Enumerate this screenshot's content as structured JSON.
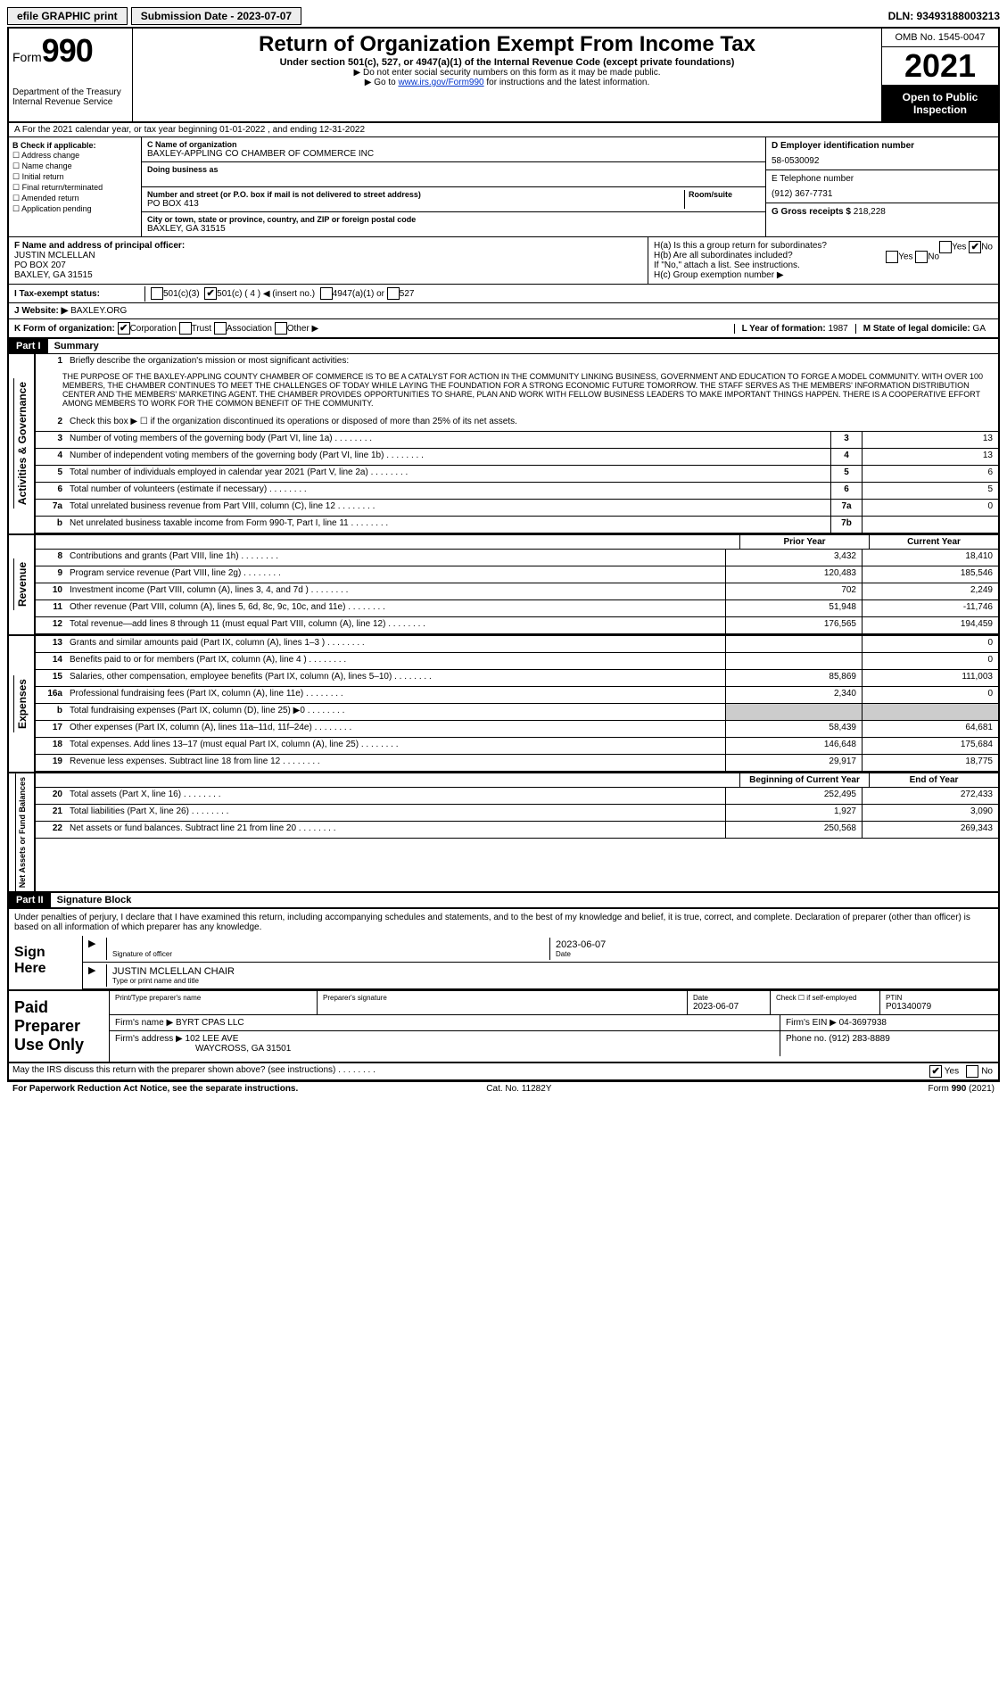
{
  "topbar": {
    "efile": "efile GRAPHIC print",
    "submission_label": "Submission Date - 2023-07-07",
    "dln": "DLN: 93493188003213"
  },
  "header": {
    "form_small": "Form",
    "form_big": "990",
    "dept": "Department of the Treasury",
    "irs": "Internal Revenue Service",
    "title": "Return of Organization Exempt From Income Tax",
    "sub": "Under section 501(c), 527, or 4947(a)(1) of the Internal Revenue Code (except private foundations)",
    "note1": "▶ Do not enter social security numbers on this form as it may be made public.",
    "note2_pre": "▶ Go to ",
    "note2_link": "www.irs.gov/Form990",
    "note2_post": " for instructions and the latest information.",
    "omb": "OMB No. 1545-0047",
    "year": "2021",
    "open": "Open to Public Inspection"
  },
  "rowA": "A   For the 2021 calendar year, or tax year beginning 01-01-2022   , and ending 12-31-2022",
  "colB": {
    "label": "B Check if applicable:",
    "items": [
      "Address change",
      "Name change",
      "Initial return",
      "Final return/terminated",
      "Amended return",
      "Application pending"
    ]
  },
  "colC": {
    "name_lbl": "C Name of organization",
    "name": "BAXLEY-APPLING CO CHAMBER OF COMMERCE INC",
    "dba_lbl": "Doing business as",
    "addr_lbl": "Number and street (or P.O. box if mail is not delivered to street address)",
    "room_lbl": "Room/suite",
    "addr": "PO BOX 413",
    "city_lbl": "City or town, state or province, country, and ZIP or foreign postal code",
    "city": "BAXLEY, GA  31515"
  },
  "colDE": {
    "d_lbl": "D Employer identification number",
    "d_val": "58-0530092",
    "e_lbl": "E Telephone number",
    "e_val": "(912) 367-7731",
    "g_lbl": "G Gross receipts $",
    "g_val": "218,228"
  },
  "secF": {
    "lbl": "F  Name and address of principal officer:",
    "name": "JUSTIN MCLELLAN",
    "addr1": "PO BOX 207",
    "addr2": "BAXLEY, GA  31515"
  },
  "secH": {
    "ha": "H(a)  Is this a group return for subordinates?",
    "hb": "H(b)  Are all subordinates included?",
    "hb_note": "If \"No,\" attach a list. See instructions.",
    "hc": "H(c)  Group exemption number ▶",
    "yes": "Yes",
    "no": "No"
  },
  "rowI": {
    "lbl": "I   Tax-exempt status:",
    "o1": "501(c)(3)",
    "o2": "501(c) ( 4 ) ◀ (insert no.)",
    "o3": "4947(a)(1) or",
    "o4": "527"
  },
  "rowJ": {
    "lbl": "J   Website: ▶",
    "val": "BAXLEY.ORG"
  },
  "rowK": {
    "lbl": "K Form of organization:",
    "corp": "Corporation",
    "trust": "Trust",
    "assoc": "Association",
    "other": "Other ▶",
    "l_lbl": "L Year of formation:",
    "l_val": "1987",
    "m_lbl": "M State of legal domicile:",
    "m_val": "GA"
  },
  "part1": {
    "hdr": "Part I",
    "title": "Summary",
    "line1_lbl": "Briefly describe the organization's mission or most significant activities:",
    "mission": "THE PURPOSE OF THE BAXLEY-APPLING COUNTY CHAMBER OF COMMERCE IS TO BE A CATALYST FOR ACTION IN THE COMMUNITY LINKING BUSINESS, GOVERNMENT AND EDUCATION TO FORGE A MODEL COMMUNITY. WITH OVER 100 MEMBERS, THE CHAMBER CONTINUES TO MEET THE CHALLENGES OF TODAY WHILE LAYING THE FOUNDATION FOR A STRONG ECONOMIC FUTURE TOMORROW. THE STAFF SERVES AS THE MEMBERS' INFORMATION DISTRIBUTION CENTER AND THE MEMBERS' MARKETING AGENT. THE CHAMBER PROVIDES OPPORTUNITIES TO SHARE, PLAN AND WORK WITH FELLOW BUSINESS LEADERS TO MAKE IMPORTANT THINGS HAPPEN. THERE IS A COOPERATIVE EFFORT AMONG MEMBERS TO WORK FOR THE COMMON BENEFIT OF THE COMMUNITY.",
    "line2": "Check this box ▶ ☐  if the organization discontinued its operations or disposed of more than 25% of its net assets.",
    "tab_gov": "Activities & Governance",
    "tab_rev": "Revenue",
    "tab_exp": "Expenses",
    "tab_net": "Net Assets or Fund Balances",
    "gov_lines": [
      {
        "n": "3",
        "d": "Number of voting members of the governing body (Part VI, line 1a)",
        "b": "3",
        "v": "13"
      },
      {
        "n": "4",
        "d": "Number of independent voting members of the governing body (Part VI, line 1b)",
        "b": "4",
        "v": "13"
      },
      {
        "n": "5",
        "d": "Total number of individuals employed in calendar year 2021 (Part V, line 2a)",
        "b": "5",
        "v": "6"
      },
      {
        "n": "6",
        "d": "Total number of volunteers (estimate if necessary)",
        "b": "6",
        "v": "5"
      },
      {
        "n": "7a",
        "d": "Total unrelated business revenue from Part VIII, column (C), line 12",
        "b": "7a",
        "v": "0"
      },
      {
        "n": "b",
        "d": "Net unrelated business taxable income from Form 990-T, Part I, line 11",
        "b": "7b",
        "v": ""
      }
    ],
    "hdr_prior": "Prior Year",
    "hdr_current": "Current Year",
    "rev_lines": [
      {
        "n": "8",
        "d": "Contributions and grants (Part VIII, line 1h)",
        "p": "3,432",
        "c": "18,410"
      },
      {
        "n": "9",
        "d": "Program service revenue (Part VIII, line 2g)",
        "p": "120,483",
        "c": "185,546"
      },
      {
        "n": "10",
        "d": "Investment income (Part VIII, column (A), lines 3, 4, and 7d )",
        "p": "702",
        "c": "2,249"
      },
      {
        "n": "11",
        "d": "Other revenue (Part VIII, column (A), lines 5, 6d, 8c, 9c, 10c, and 11e)",
        "p": "51,948",
        "c": "-11,746"
      },
      {
        "n": "12",
        "d": "Total revenue—add lines 8 through 11 (must equal Part VIII, column (A), line 12)",
        "p": "176,565",
        "c": "194,459"
      }
    ],
    "exp_lines": [
      {
        "n": "13",
        "d": "Grants and similar amounts paid (Part IX, column (A), lines 1–3 )",
        "p": "",
        "c": "0"
      },
      {
        "n": "14",
        "d": "Benefits paid to or for members (Part IX, column (A), line 4 )",
        "p": "",
        "c": "0"
      },
      {
        "n": "15",
        "d": "Salaries, other compensation, employee benefits (Part IX, column (A), lines 5–10)",
        "p": "85,869",
        "c": "111,003"
      },
      {
        "n": "16a",
        "d": "Professional fundraising fees (Part IX, column (A), line 11e)",
        "p": "2,340",
        "c": "0"
      },
      {
        "n": "b",
        "d": "Total fundraising expenses (Part IX, column (D), line 25) ▶0",
        "p": "shade",
        "c": "shade"
      },
      {
        "n": "17",
        "d": "Other expenses (Part IX, column (A), lines 11a–11d, 11f–24e)",
        "p": "58,439",
        "c": "64,681"
      },
      {
        "n": "18",
        "d": "Total expenses. Add lines 13–17 (must equal Part IX, column (A), line 25)",
        "p": "146,648",
        "c": "175,684"
      },
      {
        "n": "19",
        "d": "Revenue less expenses. Subtract line 18 from line 12",
        "p": "29,917",
        "c": "18,775"
      }
    ],
    "hdr_beg": "Beginning of Current Year",
    "hdr_end": "End of Year",
    "net_lines": [
      {
        "n": "20",
        "d": "Total assets (Part X, line 16)",
        "p": "252,495",
        "c": "272,433"
      },
      {
        "n": "21",
        "d": "Total liabilities (Part X, line 26)",
        "p": "1,927",
        "c": "3,090"
      },
      {
        "n": "22",
        "d": "Net assets or fund balances. Subtract line 21 from line 20",
        "p": "250,568",
        "c": "269,343"
      }
    ]
  },
  "part2": {
    "hdr": "Part II",
    "title": "Signature Block",
    "penalties": "Under penalties of perjury, I declare that I have examined this return, including accompanying schedules and statements, and to the best of my knowledge and belief, it is true, correct, and complete. Declaration of preparer (other than officer) is based on all information of which preparer has any knowledge.",
    "sign_here": "Sign Here",
    "sig_officer_lbl": "Signature of officer",
    "date_lbl": "Date",
    "date_val": "2023-06-07",
    "name_title": "JUSTIN MCLELLAN  CHAIR",
    "name_title_lbl": "Type or print name and title",
    "paid_lbl": "Paid Preparer Use Only",
    "prep_name_lbl": "Print/Type preparer's name",
    "prep_sig_lbl": "Preparer's signature",
    "prep_date_lbl": "Date",
    "prep_date": "2023-06-07",
    "self_emp": "Check ☐ if self-employed",
    "ptin_lbl": "PTIN",
    "ptin": "P01340079",
    "firm_name_lbl": "Firm's name    ▶",
    "firm_name": "BYRT CPAS LLC",
    "firm_ein_lbl": "Firm's EIN ▶",
    "firm_ein": "04-3697938",
    "firm_addr_lbl": "Firm's address ▶",
    "firm_addr1": "102 LEE AVE",
    "firm_addr2": "WAYCROSS, GA  31501",
    "phone_lbl": "Phone no.",
    "phone": "(912) 283-8889",
    "discuss": "May the IRS discuss this return with the preparer shown above? (see instructions)",
    "yes": "Yes",
    "no": "No"
  },
  "footer": {
    "pra": "For Paperwork Reduction Act Notice, see the separate instructions.",
    "cat": "Cat. No. 11282Y",
    "form": "Form 990 (2021)"
  }
}
